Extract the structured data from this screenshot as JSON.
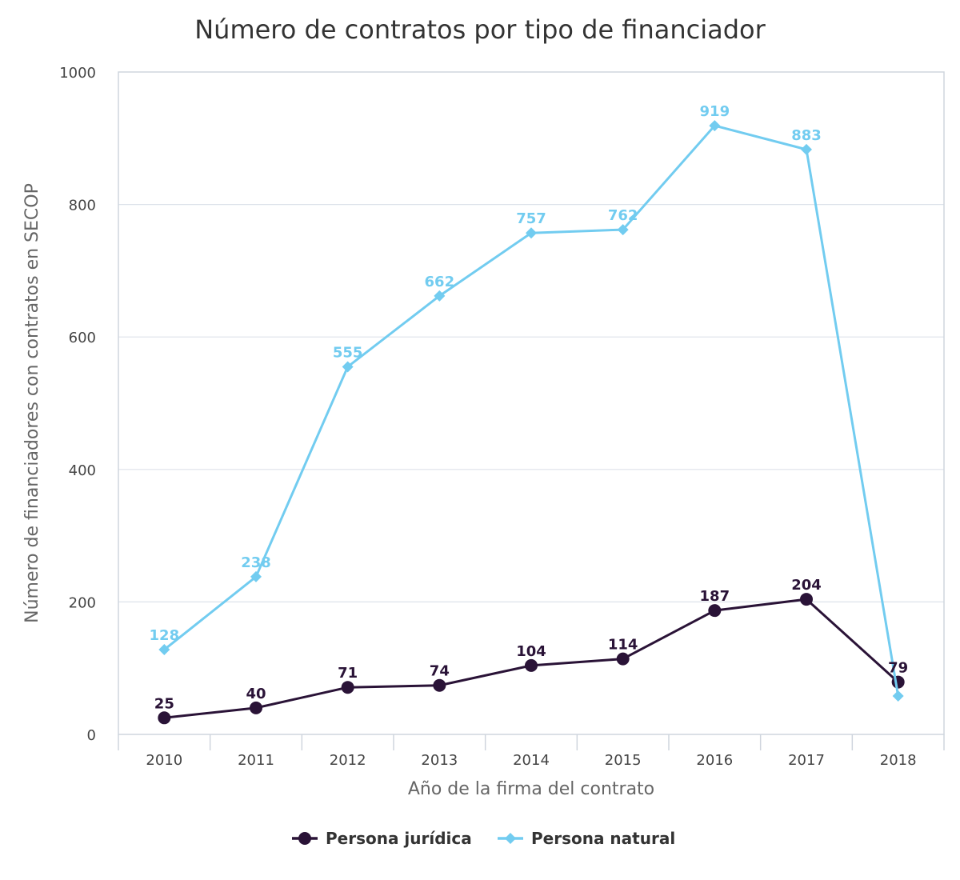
{
  "chart_data": {
    "type": "line",
    "title": "Número de contratos por tipo de financiador",
    "xlabel": "Año de la firma del contrato",
    "ylabel": "Número de financiadores con contratos en SECOP",
    "categories": [
      "2010",
      "2011",
      "2012",
      "2013",
      "2014",
      "2015",
      "2016",
      "2017",
      "2018"
    ],
    "ylim": [
      0,
      1000
    ],
    "yticks": [
      0,
      200,
      400,
      600,
      800,
      1000
    ],
    "grid": true,
    "legend_position": "bottom",
    "series": [
      {
        "name": "Persona jurídica",
        "color": "#2a1337",
        "marker": "circle",
        "values": [
          25,
          40,
          71,
          74,
          104,
          114,
          187,
          204,
          79
        ],
        "labels": [
          "25",
          "40",
          "71",
          "74",
          "104",
          "114",
          "187",
          "204",
          "79"
        ],
        "labels_shown": [
          true,
          true,
          true,
          true,
          true,
          true,
          true,
          true,
          true
        ]
      },
      {
        "name": "Persona natural",
        "color": "#72ccf0",
        "marker": "diamond",
        "values": [
          128,
          238,
          555,
          662,
          757,
          762,
          919,
          883,
          58
        ],
        "labels": [
          "128",
          "238",
          "555",
          "662",
          "757",
          "762",
          "919",
          "883",
          ""
        ],
        "labels_shown": [
          true,
          true,
          true,
          true,
          true,
          true,
          true,
          true,
          false
        ]
      }
    ]
  }
}
